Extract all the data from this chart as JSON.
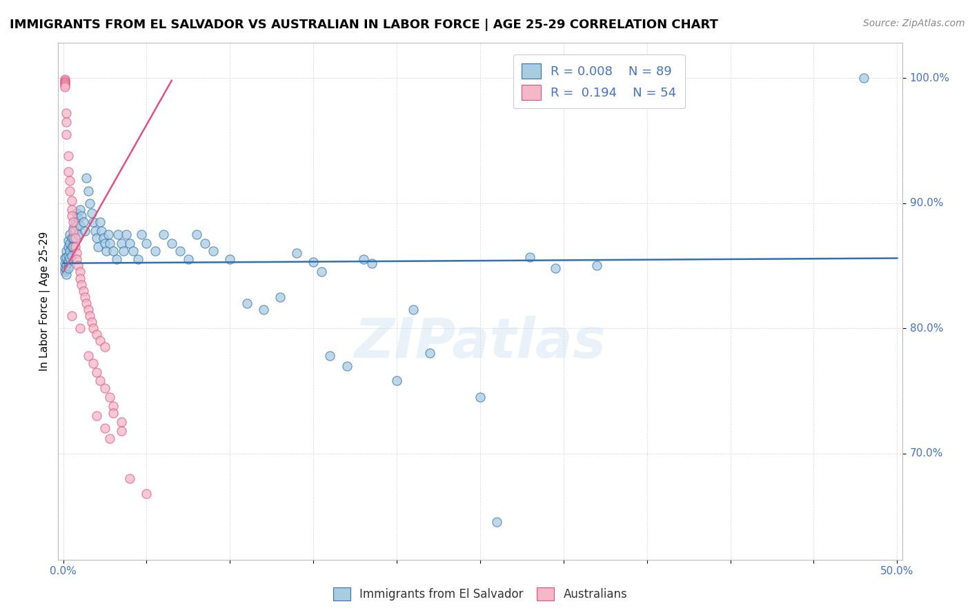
{
  "title": "IMMIGRANTS FROM EL SALVADOR VS AUSTRALIAN IN LABOR FORCE | AGE 25-29 CORRELATION CHART",
  "source": "Source: ZipAtlas.com",
  "ylabel_label": "In Labor Force | Age 25-29",
  "legend_blue_r": "R = 0.008",
  "legend_blue_n": "N = 89",
  "legend_pink_r": "R =  0.194",
  "legend_pink_n": "N = 54",
  "watermark": "ZIPatlas",
  "blue_color": "#a8cce0",
  "pink_color": "#f4b8c8",
  "blue_line_color": "#3070b0",
  "pink_line_color": "#e05080",
  "blue_scatter": [
    [
      0.001,
      0.856
    ],
    [
      0.001,
      0.852
    ],
    [
      0.001,
      0.848
    ],
    [
      0.001,
      0.845
    ],
    [
      0.002,
      0.862
    ],
    [
      0.002,
      0.857
    ],
    [
      0.002,
      0.851
    ],
    [
      0.002,
      0.847
    ],
    [
      0.002,
      0.843
    ],
    [
      0.003,
      0.87
    ],
    [
      0.003,
      0.865
    ],
    [
      0.003,
      0.858
    ],
    [
      0.003,
      0.853
    ],
    [
      0.003,
      0.848
    ],
    [
      0.004,
      0.875
    ],
    [
      0.004,
      0.868
    ],
    [
      0.004,
      0.862
    ],
    [
      0.004,
      0.856
    ],
    [
      0.005,
      0.872
    ],
    [
      0.005,
      0.865
    ],
    [
      0.005,
      0.858
    ],
    [
      0.006,
      0.88
    ],
    [
      0.006,
      0.872
    ],
    [
      0.006,
      0.865
    ],
    [
      0.007,
      0.885
    ],
    [
      0.007,
      0.878
    ],
    [
      0.008,
      0.892
    ],
    [
      0.008,
      0.882
    ],
    [
      0.009,
      0.888
    ],
    [
      0.009,
      0.875
    ],
    [
      0.01,
      0.895
    ],
    [
      0.01,
      0.882
    ],
    [
      0.011,
      0.89
    ],
    [
      0.012,
      0.885
    ],
    [
      0.013,
      0.878
    ],
    [
      0.014,
      0.92
    ],
    [
      0.015,
      0.91
    ],
    [
      0.016,
      0.9
    ],
    [
      0.017,
      0.892
    ],
    [
      0.018,
      0.885
    ],
    [
      0.019,
      0.878
    ],
    [
      0.02,
      0.872
    ],
    [
      0.021,
      0.865
    ],
    [
      0.022,
      0.885
    ],
    [
      0.023,
      0.878
    ],
    [
      0.024,
      0.872
    ],
    [
      0.025,
      0.868
    ],
    [
      0.026,
      0.862
    ],
    [
      0.027,
      0.875
    ],
    [
      0.028,
      0.868
    ],
    [
      0.03,
      0.862
    ],
    [
      0.032,
      0.855
    ],
    [
      0.033,
      0.875
    ],
    [
      0.035,
      0.868
    ],
    [
      0.036,
      0.862
    ],
    [
      0.038,
      0.875
    ],
    [
      0.04,
      0.868
    ],
    [
      0.042,
      0.862
    ],
    [
      0.045,
      0.855
    ],
    [
      0.047,
      0.875
    ],
    [
      0.05,
      0.868
    ],
    [
      0.055,
      0.862
    ],
    [
      0.06,
      0.875
    ],
    [
      0.065,
      0.868
    ],
    [
      0.07,
      0.862
    ],
    [
      0.075,
      0.855
    ],
    [
      0.08,
      0.875
    ],
    [
      0.085,
      0.868
    ],
    [
      0.09,
      0.862
    ],
    [
      0.1,
      0.855
    ],
    [
      0.11,
      0.82
    ],
    [
      0.12,
      0.815
    ],
    [
      0.13,
      0.825
    ],
    [
      0.14,
      0.86
    ],
    [
      0.15,
      0.853
    ],
    [
      0.155,
      0.845
    ],
    [
      0.16,
      0.778
    ],
    [
      0.17,
      0.77
    ],
    [
      0.18,
      0.855
    ],
    [
      0.185,
      0.852
    ],
    [
      0.2,
      0.758
    ],
    [
      0.21,
      0.815
    ],
    [
      0.22,
      0.78
    ],
    [
      0.28,
      0.857
    ],
    [
      0.295,
      0.848
    ],
    [
      0.32,
      0.85
    ],
    [
      0.25,
      0.745
    ],
    [
      0.26,
      0.645
    ],
    [
      0.48,
      1.0
    ]
  ],
  "pink_scatter": [
    [
      0.001,
      0.999
    ],
    [
      0.001,
      0.998
    ],
    [
      0.001,
      0.997
    ],
    [
      0.001,
      0.996
    ],
    [
      0.001,
      0.995
    ],
    [
      0.001,
      0.994
    ],
    [
      0.001,
      0.993
    ],
    [
      0.002,
      0.972
    ],
    [
      0.002,
      0.965
    ],
    [
      0.002,
      0.955
    ],
    [
      0.003,
      0.938
    ],
    [
      0.003,
      0.925
    ],
    [
      0.004,
      0.918
    ],
    [
      0.004,
      0.91
    ],
    [
      0.005,
      0.902
    ],
    [
      0.005,
      0.895
    ],
    [
      0.005,
      0.89
    ],
    [
      0.006,
      0.885
    ],
    [
      0.006,
      0.878
    ],
    [
      0.007,
      0.872
    ],
    [
      0.007,
      0.865
    ],
    [
      0.008,
      0.86
    ],
    [
      0.008,
      0.855
    ],
    [
      0.009,
      0.85
    ],
    [
      0.01,
      0.845
    ],
    [
      0.01,
      0.84
    ],
    [
      0.011,
      0.835
    ],
    [
      0.012,
      0.83
    ],
    [
      0.013,
      0.825
    ],
    [
      0.014,
      0.82
    ],
    [
      0.015,
      0.815
    ],
    [
      0.016,
      0.81
    ],
    [
      0.017,
      0.805
    ],
    [
      0.018,
      0.8
    ],
    [
      0.02,
      0.795
    ],
    [
      0.022,
      0.79
    ],
    [
      0.025,
      0.785
    ],
    [
      0.015,
      0.778
    ],
    [
      0.018,
      0.772
    ],
    [
      0.02,
      0.765
    ],
    [
      0.022,
      0.758
    ],
    [
      0.025,
      0.752
    ],
    [
      0.028,
      0.745
    ],
    [
      0.03,
      0.738
    ],
    [
      0.03,
      0.732
    ],
    [
      0.035,
      0.725
    ],
    [
      0.035,
      0.718
    ],
    [
      0.02,
      0.73
    ],
    [
      0.025,
      0.72
    ],
    [
      0.028,
      0.712
    ],
    [
      0.04,
      0.68
    ],
    [
      0.05,
      0.668
    ],
    [
      0.01,
      0.8
    ],
    [
      0.005,
      0.81
    ]
  ],
  "blue_trend_x": [
    0.0,
    0.5
  ],
  "blue_trend_y": [
    0.852,
    0.856
  ],
  "pink_trend_x": [
    0.0,
    0.065
  ],
  "pink_trend_y": [
    0.845,
    0.998
  ],
  "xmin": -0.003,
  "xmax": 0.503,
  "ymin": 0.615,
  "ymax": 1.028,
  "yticks": [
    0.7,
    0.8,
    0.9,
    1.0
  ],
  "ytick_labels": [
    "70.0%",
    "80.0%",
    "90.0%",
    "100.0%"
  ],
  "xticks": [
    0.0,
    0.05,
    0.1,
    0.15,
    0.2,
    0.25,
    0.3,
    0.35,
    0.4,
    0.45,
    0.5
  ],
  "xtick_labels": [
    "0.0%",
    "",
    "",
    "",
    "",
    "",
    "",
    "",
    "",
    "",
    "50.0%"
  ],
  "grid_color": "#dddddd",
  "title_fontsize": 13,
  "tick_fontsize": 11,
  "source_fontsize": 10
}
